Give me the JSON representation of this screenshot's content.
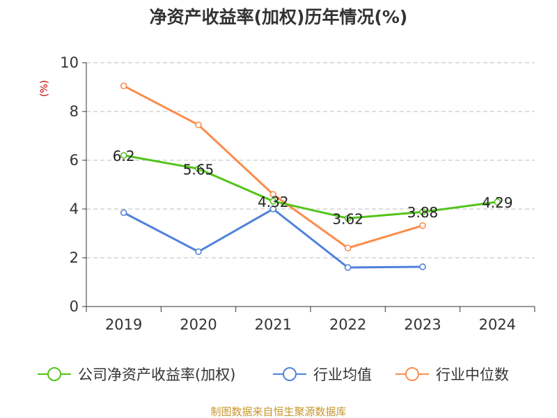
{
  "chart_data": {
    "type": "line",
    "title": "净资产收益率(加权)历年情况(%)",
    "ylabel": "(%)",
    "xlabel": "",
    "categories": [
      "2019",
      "2020",
      "2021",
      "2022",
      "2023",
      "2024"
    ],
    "ylim": [
      0,
      10
    ],
    "yticks": [
      "0",
      "2",
      "4",
      "6",
      "8",
      "10"
    ],
    "grid": true,
    "legend_position": "bottom",
    "series": [
      {
        "name": "公司净资产收益率(加权)",
        "color": "#52c41a",
        "values": [
          6.2,
          5.65,
          4.32,
          3.62,
          3.88,
          4.29
        ],
        "labels": [
          "6.2",
          "5.65",
          "4.32",
          "3.62",
          "3.88",
          "4.29"
        ]
      },
      {
        "name": "行业均值",
        "color": "#4f81db",
        "values": [
          3.85,
          2.25,
          4.0,
          1.6,
          1.63,
          null
        ]
      },
      {
        "name": "行业中位数",
        "color": "#fb8c4c",
        "values": [
          9.05,
          7.45,
          4.6,
          2.4,
          3.32,
          null
        ]
      }
    ],
    "source": "制图数据来自恒生聚源数据库"
  }
}
